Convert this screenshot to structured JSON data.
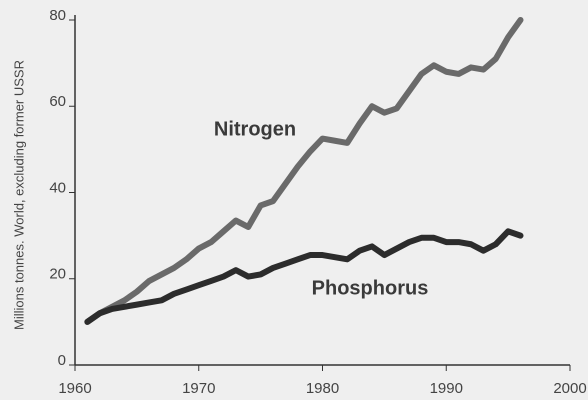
{
  "chart_data": {
    "type": "line",
    "ylabel": "Millions tonnes. World, excluding former USSR",
    "x": [
      1961,
      1962,
      1963,
      1964,
      1965,
      1966,
      1967,
      1968,
      1969,
      1970,
      1971,
      1972,
      1973,
      1974,
      1975,
      1976,
      1977,
      1978,
      1979,
      1980,
      1981,
      1982,
      1983,
      1984,
      1985,
      1986,
      1987,
      1988,
      1989,
      1990,
      1991,
      1992,
      1993,
      1994,
      1995,
      1996
    ],
    "series": [
      {
        "name": "Nitrogen",
        "color": "#6a6a6a",
        "values": [
          10,
          12,
          13.5,
          15,
          17,
          19.5,
          21,
          22.5,
          24.5,
          27,
          28.5,
          31,
          33.5,
          32,
          37,
          38,
          42,
          46,
          49.5,
          52.5,
          52,
          51.5,
          56,
          60,
          58.5,
          59.5,
          63.5,
          67.5,
          69.5,
          68,
          67.5,
          69,
          68.5,
          71,
          76,
          80
        ]
      },
      {
        "name": "Phosphorus",
        "color": "#2c2c2c",
        "values": [
          10,
          12,
          13,
          13.5,
          14,
          14.5,
          15,
          16.5,
          17.5,
          18.5,
          19.5,
          20.5,
          22,
          20.5,
          21,
          22.5,
          23.5,
          24.5,
          25.5,
          25.5,
          25,
          24.5,
          26.5,
          27.5,
          25.5,
          27,
          28.5,
          29.5,
          29.5,
          28.5,
          28.5,
          28,
          26.5,
          28,
          31,
          30
        ]
      }
    ],
    "xlim": [
      1960,
      2000
    ],
    "xticks": [
      1960,
      1970,
      1980,
      1990,
      2000
    ],
    "ylim": [
      0,
      80
    ],
    "yticks": [
      0,
      20,
      40,
      60,
      80
    ]
  }
}
